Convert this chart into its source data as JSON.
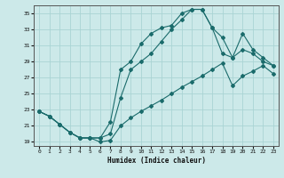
{
  "xlabel": "Humidex (Indice chaleur)",
  "background_color": "#cce9e9",
  "grid_color": "#aad4d4",
  "line_color": "#1a6b6b",
  "xlim": [
    -0.5,
    23.5
  ],
  "ylim": [
    18.5,
    36.0
  ],
  "xticks": [
    0,
    1,
    2,
    3,
    4,
    5,
    6,
    7,
    8,
    9,
    10,
    11,
    12,
    13,
    14,
    15,
    16,
    17,
    18,
    19,
    20,
    21,
    22,
    23
  ],
  "yticks": [
    19,
    21,
    23,
    25,
    27,
    29,
    31,
    33,
    35
  ],
  "line1_x": [
    0,
    1,
    2,
    3,
    4,
    5,
    6,
    7,
    8,
    9,
    10,
    11,
    12,
    13,
    14,
    15,
    16,
    17,
    18,
    19,
    20,
    21,
    22,
    23
  ],
  "line1_y": [
    22.8,
    22.2,
    21.2,
    20.2,
    19.5,
    19.5,
    19.5,
    21.5,
    28.0,
    29.0,
    31.2,
    32.5,
    33.2,
    33.5,
    35.0,
    35.5,
    35.5,
    33.2,
    32.0,
    29.5,
    32.5,
    30.5,
    29.5,
    28.5
  ],
  "line2_x": [
    0,
    1,
    2,
    3,
    4,
    5,
    6,
    7,
    8,
    9,
    10,
    11,
    12,
    13,
    14,
    15,
    16,
    17,
    18,
    19,
    20,
    21,
    22,
    23
  ],
  "line2_y": [
    22.8,
    22.2,
    21.2,
    20.2,
    19.5,
    19.5,
    19.5,
    20.0,
    24.5,
    28.0,
    29.0,
    30.0,
    31.5,
    33.0,
    34.2,
    35.5,
    35.5,
    33.2,
    30.0,
    29.5,
    30.5,
    30.0,
    29.0,
    28.5
  ],
  "line3_x": [
    0,
    1,
    2,
    3,
    4,
    5,
    6,
    7,
    8,
    9,
    10,
    11,
    12,
    13,
    14,
    15,
    16,
    17,
    18,
    19,
    20,
    21,
    22,
    23
  ],
  "line3_y": [
    22.8,
    22.2,
    21.2,
    20.2,
    19.5,
    19.5,
    19.0,
    19.2,
    21.0,
    22.0,
    22.8,
    23.5,
    24.2,
    25.0,
    25.8,
    26.5,
    27.2,
    28.0,
    28.8,
    26.0,
    27.2,
    27.8,
    28.5,
    27.5
  ]
}
